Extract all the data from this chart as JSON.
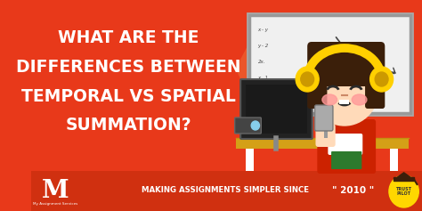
{
  "bg_color": "#E8391A",
  "footer_bg": "#D03010",
  "main_text_lines": [
    "WHAT ARE THE",
    "DIFFERENCES BETWEEN",
    "TEMPORAL VS SPATIAL",
    "SUMMATION?"
  ],
  "main_text_color": "#FFFFFF",
  "main_text_fontsize": 13.5,
  "footer_text": "MAKING ASSIGNMENTS SIMPLER SINCE",
  "footer_year": "\" 2010 \"",
  "footer_text_color": "#FFFFFF",
  "footer_fontsize": 6.2,
  "footer_year_fontsize": 7.5,
  "logo_m_color": "#FFFFFF",
  "fig_width": 4.74,
  "fig_height": 2.37,
  "dpi": 100,
  "skin_color": "#FFDAB9",
  "hair_color": "#3B1F0A",
  "headphone_color": "#FFD000",
  "shirt_color": "#CC2200",
  "desk_color": "#DAA520",
  "wb_color": "#F0F0F0",
  "monitor_color": "#222222",
  "cheek_color": "#FF9999",
  "eye_color": "#2a2a2a",
  "white": "#FFFFFF"
}
